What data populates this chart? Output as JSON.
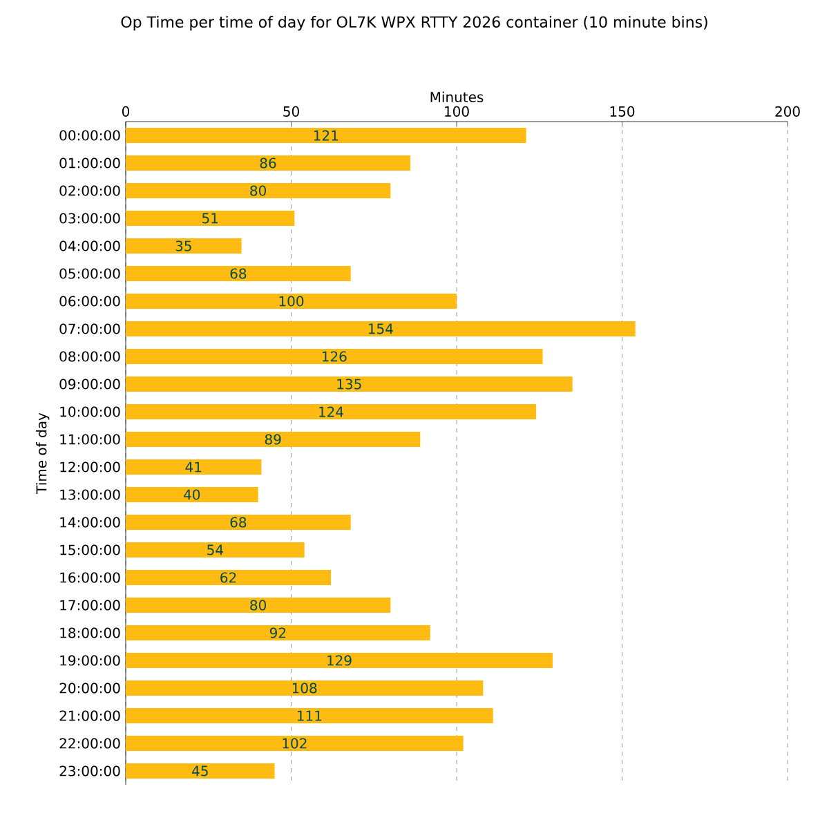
{
  "chart_data": {
    "type": "bar",
    "orientation": "horizontal",
    "title": "Op Time per time of day for OL7K WPX RTTY 2026 container (10 minute bins)",
    "xlabel": "Minutes",
    "ylabel": "Time of day",
    "categories": [
      "00:00:00",
      "01:00:00",
      "02:00:00",
      "03:00:00",
      "04:00:00",
      "05:00:00",
      "06:00:00",
      "07:00:00",
      "08:00:00",
      "09:00:00",
      "10:00:00",
      "11:00:00",
      "12:00:00",
      "13:00:00",
      "14:00:00",
      "15:00:00",
      "16:00:00",
      "17:00:00",
      "18:00:00",
      "19:00:00",
      "20:00:00",
      "21:00:00",
      "22:00:00",
      "23:00:00"
    ],
    "values": [
      121,
      86,
      80,
      51,
      35,
      68,
      100,
      154,
      126,
      135,
      124,
      89,
      41,
      40,
      68,
      54,
      62,
      80,
      92,
      129,
      108,
      111,
      102,
      45
    ],
    "color": "#ffbb11",
    "xlim": [
      0,
      200
    ],
    "xticks": [
      0,
      50,
      100,
      150,
      200
    ],
    "grid": "x",
    "data_labels": true
  }
}
